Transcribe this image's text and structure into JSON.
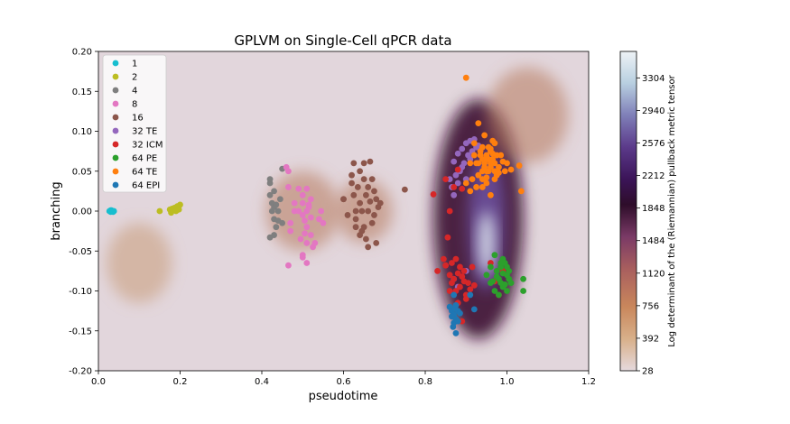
{
  "chart_data": {
    "type": "scatter",
    "title": "GPLVM on Single-Cell qPCR data",
    "xlabel": "pseudotime",
    "ylabel": "branching",
    "xlim": [
      0.0,
      1.2
    ],
    "ylim": [
      -0.2,
      0.2
    ],
    "xticks": [
      "0.0",
      "0.2",
      "0.4",
      "0.6",
      "0.8",
      "1.0",
      "1.2"
    ],
    "yticks": [
      "0.20",
      "0.15",
      "0.10",
      "0.05",
      "0.00",
      "-0.05",
      "-0.10",
      "-0.15",
      "-0.20"
    ],
    "legend_position": "upper-left",
    "colorbar": {
      "label": "Log determinant of the (Riemannian) pullback metric tensor",
      "range": [
        28,
        3600
      ],
      "ticks": [
        "28",
        "392",
        "756",
        "1120",
        "1484",
        "1848",
        "2212",
        "2576",
        "2940",
        "3304"
      ]
    },
    "background_blobs": [
      {
        "cx": 0.93,
        "cy": -0.01,
        "sx": 0.11,
        "sy": 0.15,
        "level": 0.55
      },
      {
        "cx": 0.95,
        "cy": -0.01,
        "sx": 0.045,
        "sy": 0.09,
        "level": 0.85
      },
      {
        "cx": 0.95,
        "cy": -0.04,
        "sx": 0.02,
        "sy": 0.04,
        "level": 0.95
      },
      {
        "cx": 0.65,
        "cy": 0.0,
        "sx": 0.07,
        "sy": 0.04,
        "level": 0.3
      },
      {
        "cx": 0.5,
        "cy": 0.0,
        "sx": 0.09,
        "sy": 0.05,
        "level": 0.28
      },
      {
        "cx": 0.1,
        "cy": -0.065,
        "sx": 0.08,
        "sy": 0.05,
        "level": 0.2
      },
      {
        "cx": 1.05,
        "cy": 0.12,
        "sx": 0.1,
        "sy": 0.06,
        "level": 0.3
      }
    ],
    "series": [
      {
        "name": "1",
        "color": "#17becf",
        "x": [
          0.027,
          0.03,
          0.032,
          0.034,
          0.036,
          0.038,
          0.03,
          0.035
        ],
        "y": [
          0.0,
          -0.001,
          0.001,
          0.0,
          -0.001,
          0.0,
          0.001,
          0.0
        ]
      },
      {
        "name": "2",
        "color": "#bcbd22",
        "x": [
          0.15,
          0.175,
          0.178,
          0.18,
          0.183,
          0.186,
          0.19,
          0.193,
          0.197,
          0.2
        ],
        "y": [
          0.0,
          0.002,
          -0.002,
          0.003,
          0.001,
          0.004,
          0.0,
          0.006,
          0.002,
          0.008
        ]
      },
      {
        "name": "4",
        "color": "#7f7f7f",
        "x": [
          0.42,
          0.42,
          0.425,
          0.425,
          0.43,
          0.43,
          0.435,
          0.44,
          0.445,
          0.45,
          0.42,
          0.43,
          0.44,
          0.45,
          0.43,
          0.42,
          0.435
        ],
        "y": [
          0.035,
          0.02,
          0.01,
          0.0,
          -0.01,
          0.005,
          -0.02,
          -0.012,
          0.015,
          0.053,
          -0.033,
          -0.03,
          0.0,
          -0.015,
          0.025,
          0.04,
          0.008
        ]
      },
      {
        "name": "8",
        "color": "#e377c2",
        "x": [
          0.46,
          0.465,
          0.465,
          0.47,
          0.48,
          0.49,
          0.5,
          0.5,
          0.505,
          0.51,
          0.51,
          0.515,
          0.52,
          0.52,
          0.525,
          0.5,
          0.49,
          0.51,
          0.53,
          0.54,
          0.545,
          0.55,
          0.5,
          0.51,
          0.52,
          0.505,
          0.515,
          0.495,
          0.48,
          0.47,
          0.5,
          0.51,
          0.465
        ],
        "y": [
          0.055,
          0.05,
          0.03,
          -0.025,
          0.0,
          0.028,
          0.01,
          -0.005,
          -0.012,
          0.028,
          -0.02,
          0.005,
          -0.03,
          0.015,
          -0.045,
          -0.055,
          0.0,
          -0.065,
          -0.04,
          -0.01,
          0.0,
          -0.015,
          0.02,
          0.0,
          -0.008,
          -0.028,
          0.008,
          -0.035,
          0.01,
          -0.015,
          -0.058,
          -0.04,
          -0.068
        ]
      },
      {
        "name": "16",
        "color": "#8c564b",
        "x": [
          0.6,
          0.61,
          0.62,
          0.625,
          0.63,
          0.635,
          0.64,
          0.645,
          0.65,
          0.655,
          0.66,
          0.665,
          0.67,
          0.675,
          0.68,
          0.685,
          0.69,
          0.64,
          0.65,
          0.66,
          0.67,
          0.63,
          0.625,
          0.645,
          0.655,
          0.665,
          0.675,
          0.6,
          0.75,
          0.62,
          0.64,
          0.66,
          0.68,
          0.65,
          0.63
        ],
        "y": [
          0.015,
          -0.005,
          0.045,
          0.06,
          0.0,
          0.03,
          0.05,
          -0.025,
          0.06,
          0.02,
          0.0,
          0.062,
          -0.015,
          0.025,
          -0.04,
          0.005,
          0.01,
          -0.03,
          -0.02,
          0.03,
          0.04,
          -0.01,
          0.02,
          0.0,
          -0.035,
          0.012,
          -0.005,
          0.015,
          0.027,
          0.035,
          0.01,
          -0.045,
          0.015,
          0.04,
          -0.02
        ]
      },
      {
        "name": "32 TE",
        "color": "#9467bd",
        "x": [
          0.86,
          0.865,
          0.87,
          0.875,
          0.88,
          0.885,
          0.89,
          0.895,
          0.9,
          0.905,
          0.91,
          0.915,
          0.92,
          0.925,
          0.93,
          0.87,
          0.88,
          0.89,
          0.9,
          0.91,
          0.87,
          0.88,
          0.9
        ],
        "y": [
          0.04,
          0.03,
          0.062,
          0.045,
          0.072,
          0.05,
          0.078,
          0.06,
          0.085,
          0.07,
          0.088,
          0.075,
          0.09,
          0.08,
          0.082,
          0.02,
          0.035,
          0.055,
          0.04,
          0.065,
          -0.085,
          -0.095,
          -0.075
        ]
      },
      {
        "name": "32 ICM",
        "color": "#d62728",
        "x": [
          0.82,
          0.83,
          0.845,
          0.85,
          0.855,
          0.86,
          0.865,
          0.87,
          0.875,
          0.88,
          0.885,
          0.89,
          0.895,
          0.9,
          0.905,
          0.91,
          0.915,
          0.92,
          0.86,
          0.87,
          0.88,
          0.89,
          0.96,
          0.97,
          0.98,
          0.99,
          0.89,
          0.85,
          0.865,
          0.875,
          0.885,
          0.895,
          0.9,
          0.88,
          0.86
        ],
        "y": [
          0.021,
          -0.075,
          -0.06,
          -0.068,
          -0.033,
          -0.08,
          -0.09,
          -0.085,
          -0.1,
          -0.078,
          -0.095,
          -0.082,
          -0.088,
          -0.105,
          -0.09,
          -0.098,
          -0.07,
          -0.093,
          0.0,
          0.03,
          0.052,
          0.028,
          -0.065,
          -0.088,
          -0.105,
          -0.075,
          -0.138,
          0.04,
          -0.065,
          -0.06,
          -0.07,
          -0.075,
          -0.11,
          -0.115,
          -0.1
        ]
      },
      {
        "name": "64 PE",
        "color": "#2ca02c",
        "x": [
          0.95,
          0.96,
          0.97,
          0.975,
          0.98,
          0.985,
          0.99,
          0.995,
          1.0,
          1.0,
          1.005,
          1.01,
          0.98,
          0.99,
          1.0,
          1.005,
          0.97,
          0.985,
          0.995,
          1.04,
          1.04,
          0.96,
          0.975,
          0.985,
          0.99,
          0.965
        ],
        "y": [
          -0.08,
          -0.09,
          -0.055,
          -0.075,
          -0.085,
          -0.07,
          -0.095,
          -0.065,
          -0.08,
          -0.1,
          -0.075,
          -0.09,
          -0.105,
          -0.06,
          -0.07,
          -0.085,
          -0.1,
          -0.065,
          -0.092,
          -0.085,
          -0.1,
          -0.07,
          -0.082,
          -0.09,
          -0.078,
          -0.088
        ]
      },
      {
        "name": "64 TE",
        "color": "#ff7f0e",
        "x": [
          0.9,
          0.91,
          0.915,
          0.92,
          0.925,
          0.93,
          0.935,
          0.94,
          0.945,
          0.95,
          0.955,
          0.96,
          0.965,
          0.97,
          0.975,
          0.98,
          0.985,
          0.99,
          0.995,
          1.0,
          1.01,
          1.03,
          1.035,
          0.94,
          0.945,
          0.95,
          0.955,
          0.96,
          0.965,
          0.97,
          0.93,
          0.925,
          0.94,
          0.95,
          0.96,
          0.97,
          0.935,
          0.945,
          0.955,
          0.965,
          0.975,
          0.98,
          0.92,
          0.93,
          0.94,
          0.95,
          0.96,
          0.9,
          0.91,
          0.95,
          0.96,
          0.97,
          0.94
        ],
        "y": [
          0.167,
          0.025,
          0.04,
          0.085,
          0.06,
          0.11,
          0.07,
          0.08,
          0.095,
          0.05,
          0.065,
          0.075,
          0.088,
          0.06,
          0.045,
          0.055,
          0.07,
          0.062,
          0.05,
          0.06,
          0.052,
          0.057,
          0.025,
          0.065,
          0.055,
          0.07,
          0.08,
          0.06,
          0.072,
          0.085,
          0.045,
          0.03,
          0.04,
          0.035,
          0.02,
          0.04,
          0.075,
          0.06,
          0.05,
          0.065,
          0.07,
          0.048,
          0.07,
          0.06,
          0.05,
          0.042,
          0.055,
          0.035,
          0.06,
          0.065,
          0.078,
          0.05,
          0.03
        ]
      },
      {
        "name": "64 EPI",
        "color": "#1f77b4",
        "x": [
          0.86,
          0.865,
          0.87,
          0.875,
          0.88,
          0.885,
          0.87,
          0.875,
          0.865,
          0.88,
          0.87,
          0.873,
          0.868,
          0.91,
          0.92,
          0.875
        ],
        "y": [
          -0.12,
          -0.125,
          -0.13,
          -0.135,
          -0.125,
          -0.128,
          -0.14,
          -0.118,
          -0.132,
          -0.138,
          -0.105,
          -0.122,
          -0.145,
          -0.105,
          -0.123,
          -0.153
        ]
      }
    ]
  }
}
